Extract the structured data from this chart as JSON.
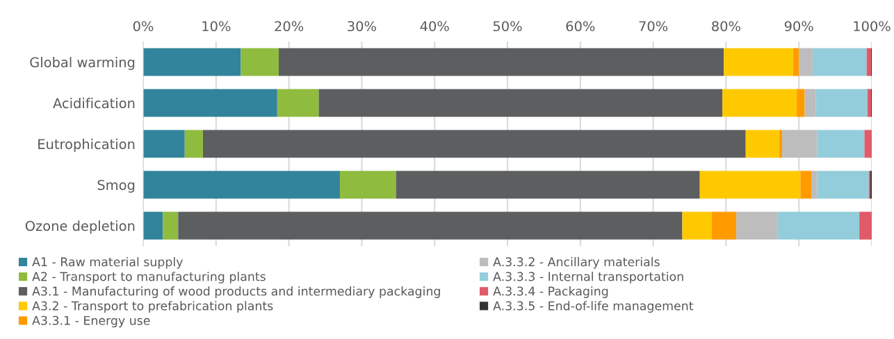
{
  "chart_data": {
    "type": "bar",
    "orientation": "horizontal",
    "stacked": true,
    "categories": [
      "Global warming",
      "Acidification",
      "Eutrophication",
      "Smog",
      "Ozone depletion"
    ],
    "series": [
      {
        "name": "A1 - Raw material supply",
        "color": "#31849b",
        "values": [
          13.4,
          18.4,
          5.7,
          27.0,
          2.7
        ]
      },
      {
        "name": "A2 - Transport to manufacturing plants",
        "color": "#8fbb3f",
        "values": [
          5.2,
          5.7,
          2.5,
          7.7,
          2.1
        ]
      },
      {
        "name": "A3.1 - Manufacturing of wood products and intermediary packaging",
        "color": "#5d5e60",
        "values": [
          61.1,
          55.4,
          74.5,
          41.7,
          69.2
        ]
      },
      {
        "name": "A3.2 - Transport to prefabrication plants",
        "color": "#ffc900",
        "values": [
          9.5,
          10.2,
          4.6,
          13.8,
          4.0
        ]
      },
      {
        "name": "A3.3.1 - Energy use",
        "color": "#ff9b00",
        "values": [
          0.8,
          1.1,
          0.4,
          1.5,
          3.4
        ]
      },
      {
        "name": "A.3.3.2 - Ancillary materials",
        "color": "#bdbdbd",
        "values": [
          1.9,
          1.5,
          4.8,
          0.8,
          5.7
        ]
      },
      {
        "name": "A.3.3.3 - Internal transportation",
        "color": "#93cddb",
        "values": [
          7.4,
          7.1,
          6.5,
          7.1,
          11.2
        ]
      },
      {
        "name": "A.3.3.4 - Packaging",
        "color": "#e05a68",
        "values": [
          0.6,
          0.5,
          1.0,
          0.2,
          1.7
        ]
      },
      {
        "name": "A.3.3.5 - End-of-life management",
        "color": "#333333",
        "values": [
          0.1,
          0.1,
          0.0,
          0.2,
          0.0
        ]
      }
    ],
    "xlim": [
      0,
      100
    ],
    "xticks": [
      {
        "value": 0,
        "label": "0%"
      },
      {
        "value": 10,
        "label": "10%"
      },
      {
        "value": 20,
        "label": "20%"
      },
      {
        "value": 30,
        "label": "30%"
      },
      {
        "value": 40,
        "label": "40%"
      },
      {
        "value": 50,
        "label": "50%"
      },
      {
        "value": 60,
        "label": "60%"
      },
      {
        "value": 70,
        "label": "70%"
      },
      {
        "value": 80,
        "label": "80%"
      },
      {
        "value": 90,
        "label": "90%"
      },
      {
        "value": 100,
        "label": "100%"
      }
    ],
    "grid": "x",
    "legend": "bottom"
  }
}
